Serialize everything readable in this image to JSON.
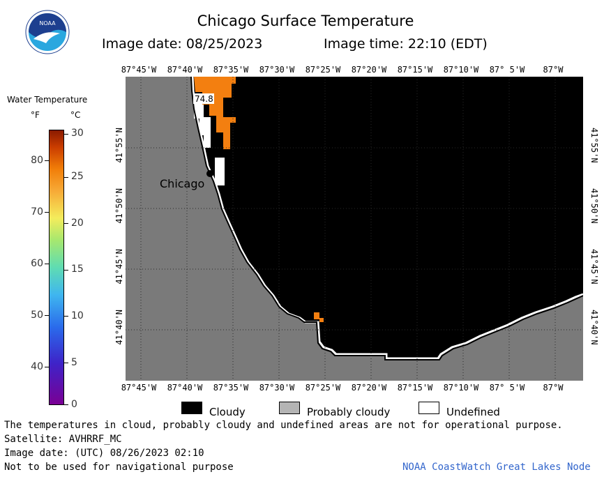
{
  "header": {
    "title": "Chicago Surface Temperature",
    "image_date": "Image date: 08/25/2023",
    "image_time": "Image time: 22:10 (EDT)"
  },
  "logo": {
    "text": "NOAA",
    "colors": {
      "ring": "#ffffff",
      "top": "#1d3f8f",
      "bottom": "#2aa7df",
      "bird": "#ffffff"
    }
  },
  "legend": {
    "title": "Water Temperature",
    "unit_f": "°F",
    "unit_c": "°C",
    "f_ticks": [
      "80",
      "70",
      "60",
      "50",
      "40"
    ],
    "c_ticks": [
      "30",
      "25",
      "20",
      "15",
      "10",
      "5",
      "0"
    ]
  },
  "map": {
    "lon_labels": [
      "87°45'W",
      "87°40'W",
      "87°35'W",
      "87°30'W",
      "87°25'W",
      "87°20'W",
      "87°15'W",
      "87°10'W",
      "87° 5'W",
      "87°W"
    ],
    "lat_labels": [
      "41°55'N",
      "41°50'N",
      "41°45'N",
      "41°40'N"
    ],
    "city_label": "Chicago",
    "temperature_label": "74.8",
    "colors": {
      "land": "#7a7a7a",
      "cloud": "#000000",
      "water_warm": "#f37f10",
      "grid": "#2a2a2a",
      "undefined": "#ffffff"
    }
  },
  "key": {
    "cloudy": "Cloudy",
    "probably_cloudy": "Probably cloudy",
    "undefined": "Undefined",
    "colors": {
      "cloudy": "#000000",
      "probably_cloudy": "#b4b4b4",
      "undefined": "#ffffff"
    }
  },
  "footer": {
    "disclaimer": "The temperatures in cloud, probably cloudy and undefined areas are not for operational purpose.",
    "satellite": "Satellite: AVHRRF_MC",
    "utc_date": "Image date: (UTC) 08/26/2023  02:10",
    "nav_warning": "Not to be used for navigational purpose",
    "source": "NOAA CoastWatch Great Lakes Node"
  }
}
